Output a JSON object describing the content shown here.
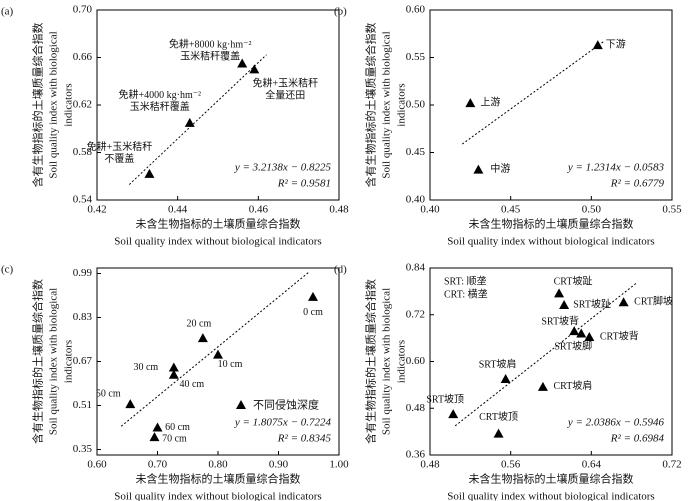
{
  "chart_data": [
    {
      "type": "scatter",
      "panel_label": "(a)",
      "xlabel": [
        "未含生物指标的土壤质量综合指数",
        "Soil quality index without biological indicators"
      ],
      "ylabel": [
        "含有生物指标的土壤质量综合指数",
        "Soil quality index with biological",
        "indicators"
      ],
      "x": [
        0.433,
        0.443,
        0.456,
        0.459
      ],
      "values": [
        0.562,
        0.605,
        0.655,
        0.65
      ],
      "labels": [
        [
          "免耕+玉米秸秆",
          "不覆盖"
        ],
        [
          "免耕+4000 kg·hm⁻²",
          "玉米秸秆覆盖"
        ],
        [
          "免耕+8000 kg·hm⁻²",
          "玉米秸秆覆盖"
        ],
        [
          "免耕+玉米秸秆",
          "全量还田"
        ]
      ],
      "color": "#000000",
      "xlim": [
        0.42,
        0.48
      ],
      "xticks": [
        0.42,
        0.44,
        0.46,
        0.48
      ],
      "ylim": [
        0.54,
        0.7
      ],
      "yticks": [
        0.54,
        0.58,
        0.62,
        0.66,
        {
          "value": 0.7,
          "label": "0.70"
        }
      ],
      "fit": {
        "slope": 3.2138,
        "intercept": -0.8225,
        "x_range": [
          0.428,
          0.462
        ],
        "equation": "y = 3.2138x − 0.8225",
        "r2": 0.9581,
        "r2_label": "R² = 0.9581"
      }
    },
    {
      "type": "scatter",
      "panel_label": "(b)",
      "xlabel": [
        "未含生物指标的土壤质量综合指数",
        "Soil quality index without biological indicators"
      ],
      "ylabel": [
        "含有生物指标的土壤质量综合指数",
        "Soil quality index with biological",
        "indicators"
      ],
      "x": [
        0.425,
        0.43,
        0.504
      ],
      "values": [
        0.502,
        0.432,
        0.563
      ],
      "labels": [
        "上游",
        "中游",
        "下游"
      ],
      "color": "#000000",
      "xlim": [
        0.4,
        0.55
      ],
      "xticks": [
        {
          "value": 0.4,
          "label": "0.40"
        },
        0.45,
        {
          "value": 0.5,
          "label": "0.50"
        },
        0.55
      ],
      "ylim": [
        0.4,
        0.6
      ],
      "yticks": [
        {
          "value": 0.4,
          "label": "0.40"
        },
        0.45,
        {
          "value": 0.5,
          "label": "0.50"
        },
        0.55,
        {
          "value": 0.6,
          "label": "0.60"
        }
      ],
      "fit": {
        "slope": 1.2314,
        "intercept": -0.0583,
        "x_range": [
          0.42,
          0.508
        ],
        "equation": "y = 1.2314x − 0.0583",
        "r2": 0.6779,
        "r2_label": "R² = 0.6779"
      }
    },
    {
      "type": "scatter",
      "panel_label": "(c)",
      "xlabel": [
        "未含生物指标的土壤质量综合指数",
        "Soil quality index without biological indicators"
      ],
      "ylabel": [
        "含有生物指标的土壤质量综合指数",
        "Soil quality index with biological",
        "indicators"
      ],
      "x": [
        0.957,
        0.775,
        0.8,
        0.727,
        0.727,
        0.655,
        0.7,
        0.695
      ],
      "values": [
        0.905,
        0.755,
        0.695,
        0.648,
        0.622,
        0.515,
        0.43,
        0.395
      ],
      "labels": [
        "0 cm",
        "20 cm",
        "10 cm",
        "30 cm",
        "40 cm",
        "50 cm",
        "60 cm",
        "70 cm"
      ],
      "legend_label": "不同侵蚀深度",
      "color": "#000000",
      "xlim": [
        0.6,
        1.0
      ],
      "xticks": [
        {
          "value": 0.6,
          "label": "0.60"
        },
        {
          "value": 0.7,
          "label": "0.70"
        },
        {
          "value": 0.8,
          "label": "0.80"
        },
        {
          "value": 0.9,
          "label": "0.90"
        },
        {
          "value": 1.0,
          "label": "1.00"
        }
      ],
      "ylim": [
        0.33,
        1.01
      ],
      "yticks": [
        0.35,
        0.51,
        0.67,
        0.83,
        0.99
      ],
      "fit": {
        "slope": 1.8075,
        "intercept": -0.7224,
        "x_range": [
          0.64,
          0.95
        ],
        "equation": "y = 1.8075x − 0.7224",
        "r2": 0.8345,
        "r2_label": "R² = 0.8345"
      }
    },
    {
      "type": "scatter",
      "panel_label": "(d)",
      "xlabel": [
        "未含生物指标的土壤质量综合指数",
        "Soil quality index without biological indicators"
      ],
      "ylabel": [
        "含有生物指标的土壤质量综合指数",
        "Soil quality index with biological",
        "indicators"
      ],
      "x": [
        0.503,
        0.548,
        0.555,
        0.592,
        0.623,
        0.63,
        0.638,
        0.608,
        0.613,
        0.672
      ],
      "values": [
        0.465,
        0.415,
        0.555,
        0.535,
        0.678,
        0.672,
        0.663,
        0.775,
        0.745,
        0.752
      ],
      "labels": [
        "SRT坡顶",
        "CRT坡顶",
        "SRT坡肩",
        "CRT坡肩",
        "SRT坡背",
        "SRT坡脚",
        "CRT坡背",
        "CRT坡趾",
        "SRT坡趾",
        "CRT脚坡"
      ],
      "notes": [
        "SRT: 顺垄",
        "CRT: 横垄"
      ],
      "color": "#000000",
      "xlim": [
        0.48,
        0.72
      ],
      "xticks": [
        0.48,
        0.56,
        0.64,
        0.72
      ],
      "ylim": [
        0.36,
        0.84
      ],
      "yticks": [
        0.36,
        0.48,
        {
          "value": 0.6,
          "label": "0.60"
        },
        0.72,
        0.84
      ],
      "fit": {
        "slope": 2.0386,
        "intercept": -0.5946,
        "x_range": [
          0.505,
          0.685
        ],
        "equation": "y = 2.0386x − 0.5946",
        "r2": 0.6984,
        "r2_label": "R² = 0.6984"
      }
    }
  ]
}
